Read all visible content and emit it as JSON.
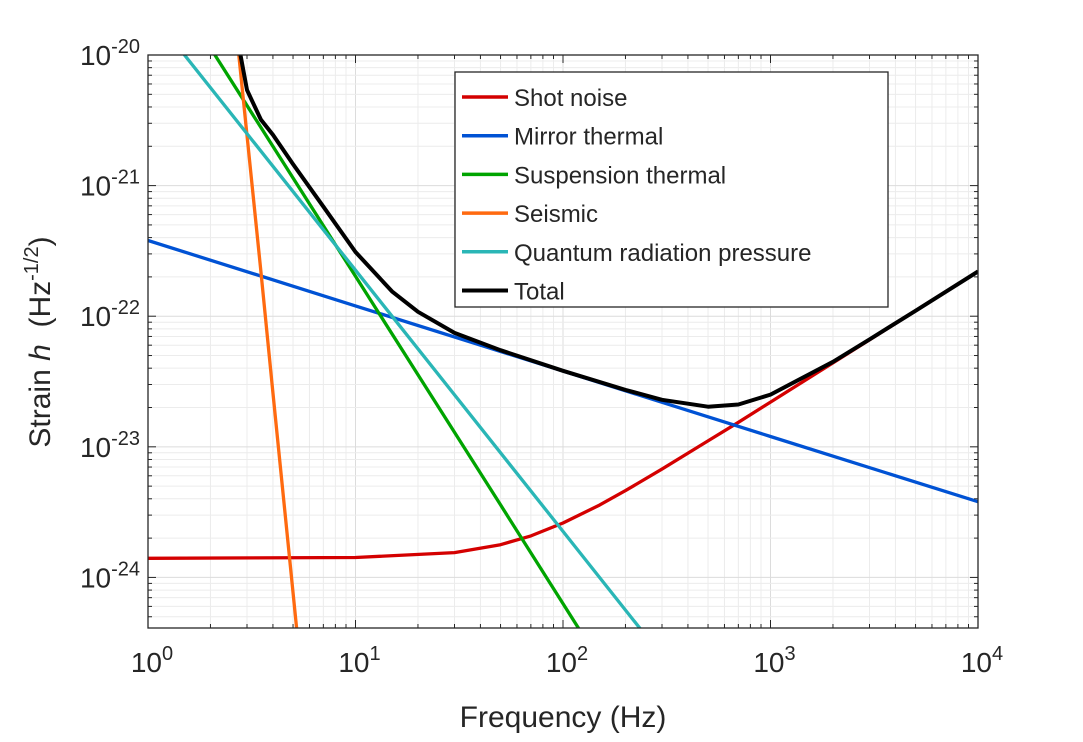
{
  "chart_data": {
    "type": "line",
    "title": "",
    "xlabel": "Frequency (Hz)",
    "ylabel": {
      "prefix": "Strain ",
      "italic": "h",
      "unit_open": "  (Hz",
      "unit_exp": "-1/2",
      "unit_close": ")"
    },
    "xscale": "log",
    "yscale": "log",
    "xlim": [
      1,
      10000
    ],
    "ylim": [
      4.1e-25,
      1e-20
    ],
    "grid": true,
    "legend_position": "top-right",
    "xticks": [
      {
        "value": 1,
        "base": "10",
        "exp": "0"
      },
      {
        "value": 10,
        "base": "10",
        "exp": "1"
      },
      {
        "value": 100,
        "base": "10",
        "exp": "2"
      },
      {
        "value": 1000,
        "base": "10",
        "exp": "3"
      },
      {
        "value": 10000,
        "base": "10",
        "exp": "4"
      }
    ],
    "yticks": [
      {
        "value": 1e-24,
        "base": "10",
        "exp": "-24"
      },
      {
        "value": 1e-23,
        "base": "10",
        "exp": "-23"
      },
      {
        "value": 1e-22,
        "base": "10",
        "exp": "-22"
      },
      {
        "value": 1e-21,
        "base": "10",
        "exp": "-21"
      },
      {
        "value": 1e-20,
        "base": "10",
        "exp": "-20"
      }
    ],
    "series": [
      {
        "name": "Shot noise",
        "color": "#d40000",
        "x": [
          1,
          10,
          30,
          50,
          70,
          100,
          150,
          200,
          300,
          500,
          700,
          1000,
          2000,
          3000,
          5000,
          10000
        ],
        "y": [
          1.4e-24,
          1.42e-24,
          1.55e-24,
          1.78e-24,
          2.08e-24,
          2.61e-24,
          3.58e-24,
          4.62e-24,
          6.75e-24,
          1.11e-23,
          1.54e-23,
          2.2e-23,
          4.4e-23,
          6.6e-23,
          1.1e-22,
          2.2e-22
        ]
      },
      {
        "name": "Mirror thermal",
        "color": "#0052d4",
        "x": [
          1,
          10,
          100,
          1000,
          10000
        ],
        "y": [
          3.8e-22,
          1.2e-22,
          3.8e-23,
          1.2e-23,
          3.8e-24
        ]
      },
      {
        "name": "Suspension thermal",
        "color": "#00a400",
        "x": [
          1,
          2.1,
          10,
          50,
          100,
          200
        ],
        "y": [
          6.4e-20,
          1e-20,
          2.02e-22,
          3.6e-24,
          6.3e-25,
          1.1e-25
        ]
      },
      {
        "name": "Seismic",
        "color": "#ff6a10",
        "x": [
          2,
          2.74,
          3.5,
          4,
          5.2,
          6
        ],
        "y": [
          1.4e-18,
          1e-20,
          2.2e-22,
          2.6e-23,
          4.1e-25,
          4.6e-26
        ]
      },
      {
        "name": "Quantum radiation pressure",
        "color": "#2ab6b6",
        "x": [
          1,
          1.5,
          10,
          100,
          300
        ],
        "y": [
          2.25e-20,
          1e-20,
          2.25e-22,
          2.25e-24,
          2.5e-25
        ]
      },
      {
        "name": "Total",
        "color": "#000000",
        "x": [
          2.5,
          2.75,
          3,
          3.5,
          4,
          5,
          7,
          10,
          15,
          20,
          30,
          50,
          100,
          200,
          300,
          500,
          700,
          1000,
          2000,
          3000,
          5000,
          10000
        ],
        "y": [
          4.3e-20,
          1.13e-20,
          5.4e-21,
          3.2e-21,
          2.45e-21,
          1.46e-21,
          6.9e-22,
          3.1e-22,
          1.55e-22,
          1.08e-22,
          7.45e-23,
          5.49e-23,
          3.82e-23,
          2.73e-23,
          2.29e-23,
          2.03e-23,
          2.11e-23,
          2.51e-23,
          4.48e-23,
          6.64e-23,
          1.1e-22,
          2.2e-22
        ]
      }
    ]
  }
}
